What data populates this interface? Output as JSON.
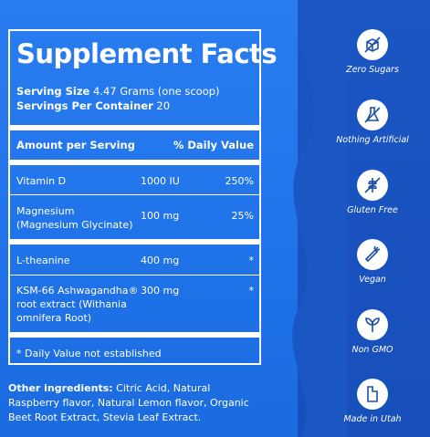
{
  "panel": {
    "title": "Supplement Facts",
    "serving_size_label": "Serving Size",
    "serving_size_value": "4.47 Grams (one scoop)",
    "servings_label": "Servings Per Container",
    "servings_value": "20",
    "col_amount": "Amount per Serving",
    "col_dv": "% Daily Value",
    "rows": [
      {
        "name": "Vitamin D",
        "amount": "1000 IU",
        "dv": "250%"
      },
      {
        "name": "Magnesium",
        "name2": "(Magnesium Glycinate)",
        "amount": "100 mg",
        "dv": "25%"
      },
      {
        "name": "L-theanine",
        "amount": "400 mg",
        "dv": "*"
      },
      {
        "name": "KSM-66 Ashwagandha®",
        "name2": "root extract (Withania",
        "name3": "omnifera Root)",
        "amount": "300 mg",
        "dv": "*"
      }
    ],
    "footnote": "* Daily Value not established"
  },
  "ingredients": {
    "label": "Other ingredients:",
    "text": "Citric Acid, Natural Raspberry flavor, Natural Lemon flavor, Organic Beet Root Extract, Stevia Leaf Extract."
  },
  "badges": [
    {
      "label": "Zero Sugars",
      "icon": "sugar-cube-crossed-icon"
    },
    {
      "label": "Nothing Artificial",
      "icon": "flask-crossed-icon"
    },
    {
      "label": "Gluten Free",
      "icon": "wheat-crossed-icon"
    },
    {
      "label": "Vegan",
      "icon": "carrot-icon"
    },
    {
      "label": "Non GMO",
      "icon": "leaves-icon"
    },
    {
      "label": "Made in Utah",
      "icon": "utah-state-icon"
    }
  ],
  "colors": {
    "background": "#1f6fe0",
    "icon_circle": "#ffffff",
    "icon_stroke": "#1d4fa8"
  }
}
